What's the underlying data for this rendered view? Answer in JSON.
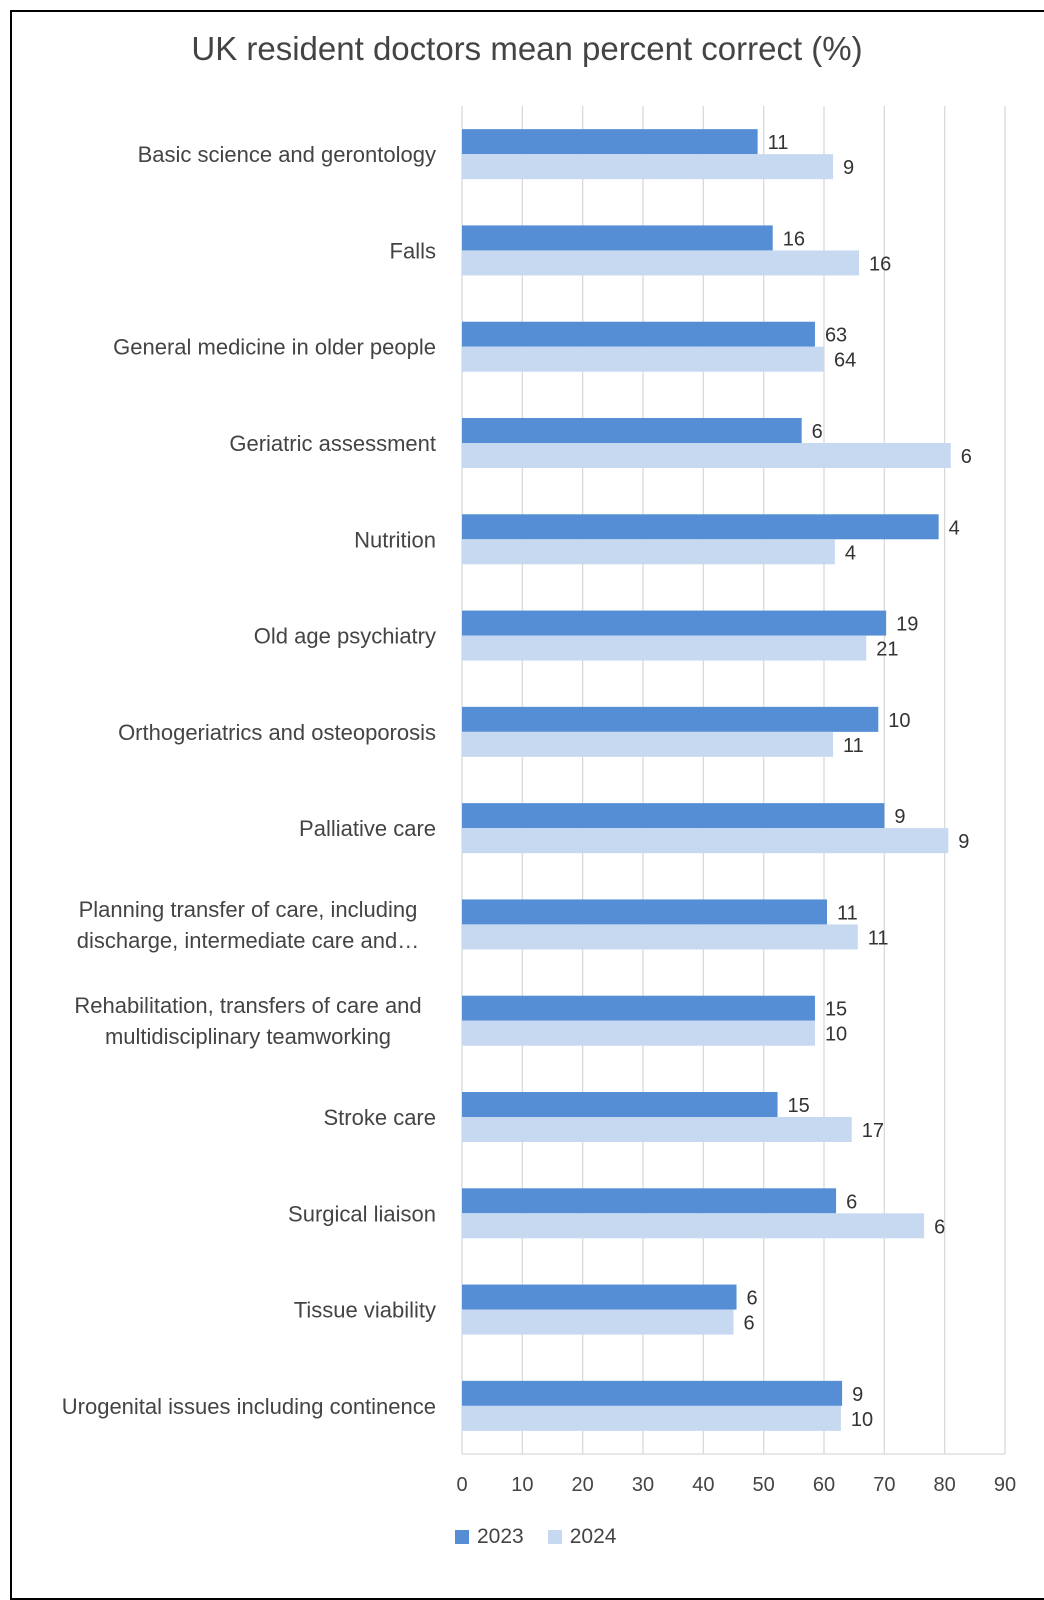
{
  "chart_data": {
    "type": "bar",
    "orientation": "horizontal",
    "title": "UK resident doctors mean percent correct (%)",
    "xlabel": "",
    "ylabel": "",
    "xlim": [
      0,
      90
    ],
    "xticks": [
      0,
      10,
      20,
      30,
      40,
      50,
      60,
      70,
      80,
      90
    ],
    "grid": true,
    "legend_position": "bottom-left",
    "categories": [
      [
        "Basic science and gerontology"
      ],
      [
        "Falls"
      ],
      [
        "General medicine in older people"
      ],
      [
        "Geriatric assessment"
      ],
      [
        "Nutrition"
      ],
      [
        "Old age psychiatry"
      ],
      [
        "Orthogeriatrics and osteoporosis"
      ],
      [
        "Palliative care"
      ],
      [
        "Planning transfer of care, including",
        "discharge, intermediate care and…"
      ],
      [
        "Rehabilitation, transfers of care and",
        "multidisciplinary teamworking"
      ],
      [
        "Stroke care"
      ],
      [
        "Surgical liaison"
      ],
      [
        "Tissue viability"
      ],
      [
        "Urogenital issues including continence"
      ]
    ],
    "series": [
      {
        "name": "2023",
        "color": "#558ed5",
        "values": [
          49,
          51.5,
          58.5,
          56.3,
          79,
          70.3,
          69,
          70,
          60.5,
          58.5,
          52.3,
          62,
          45.5,
          63
        ],
        "data_labels": [
          "11",
          "16",
          "63",
          "6",
          "4",
          "19",
          "10",
          "9",
          "11",
          "15",
          "15",
          "6",
          "6",
          "9"
        ]
      },
      {
        "name": "2024",
        "color": "#c6d9f1",
        "values": [
          61.5,
          65.8,
          60,
          81,
          61.8,
          67,
          61.5,
          80.6,
          65.6,
          58.5,
          64.6,
          76.6,
          45,
          62.8
        ],
        "data_labels": [
          "9",
          "16",
          "64",
          "6",
          "4",
          "21",
          "11",
          "9",
          "11",
          "10",
          "17",
          "6",
          "6",
          "10"
        ]
      }
    ]
  }
}
